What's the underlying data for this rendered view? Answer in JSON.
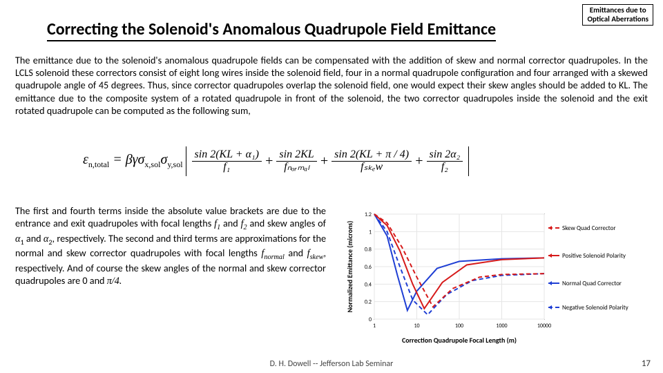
{
  "header": {
    "line1": "Emittances due to",
    "line2": "Optical Aberrations"
  },
  "title": "Correcting the Solenoid's Anomalous Quadrupole Field Emittance",
  "para1": "The emittance due to the solenoid's anomalous quadrupole fields can be compensated with the addition of skew and normal corrector quadrupoles.  In the LCLS solenoid these correctors consist of eight long wires inside the solenoid field, four in a normal quadrupole configuration and four arranged with a skewed quadrupole angle of 45 degrees.  Thus, since corrector quadrupoles overlap the solenoid field, one would expect their skew angles should be added to KL.  The emittance due to the composite system of a rotated quadrupole in front of the solenoid, the two corrector quadrupoles inside the solenoid and the exit rotated quadrupole can be computed as the following sum,",
  "formula": {
    "lhs": {
      "sym": "ε",
      "sub": "n,total",
      "eq": " = βγσ",
      "sub2": "x,sol",
      "sym2": "σ",
      "sub3": "y,sol"
    },
    "t1": {
      "num": "sin 2(KL + α₁)",
      "den": "f₁"
    },
    "t2": {
      "num": "sin 2KL",
      "den": "fₙₒᵣₘₐₗ"
    },
    "t3": {
      "num": "sin 2(KL + π / 4)",
      "den": "fₛₖₑw"
    },
    "t4": {
      "num": "sin 2α₂",
      "den": "f₂"
    }
  },
  "para2_parts": {
    "a": "The first and fourth terms inside the absolute value brackets are due to the entrance and exit quadrupoles with focal lengths ",
    "f1": "f",
    "f1s": "1",
    "and1": " and ",
    "f2": "f",
    "f2s": "2",
    "b": " and skew angles of ",
    "a1": "α",
    "a1s": "1",
    "and2": " and ",
    "a2": "α",
    "a2s": "2",
    "c": ", respectively.  The second and third terms are approximations for the normal and skew corrector quadrupoles with focal lengths ",
    "fn": "f",
    "fns": "normal",
    "and3": " and ",
    "fs": "f",
    "fss": "skew",
    "d": ", respectively.  And of course the skew angles of the normal and skew corrector quadrupoles are 0 and ",
    "pi": "π/4."
  },
  "chart": {
    "ylabel": "Normalized Emittance (microns)",
    "xlabel": "Correction Quadrupole Focal Length (m)",
    "xlim": [
      1,
      10000
    ],
    "ylim": [
      0,
      1.2
    ],
    "yticks": [
      "0",
      "0.2",
      "0.4",
      "0.6",
      "0.8",
      "1",
      "1.2"
    ],
    "xticks": [
      "1",
      "10",
      "100",
      "1000",
      "10000"
    ],
    "background": "#ffffff",
    "grid": "#e5e5e5",
    "axis": "#000000",
    "title_fontsize": 10,
    "legend": {
      "skew": "Skew Quad Corrector",
      "pos": "Positive Solenoid Polarity",
      "norm": "Normal Quad Corrector",
      "neg": "Negative Solenoid Polarity"
    },
    "colors": {
      "blue": "#1f3fd4",
      "red": "#d61a1a"
    },
    "curves": {
      "blue_solid": [
        [
          1,
          1.2
        ],
        [
          2,
          0.95
        ],
        [
          3.5,
          0.5
        ],
        [
          6,
          0.1
        ],
        [
          10,
          0.32
        ],
        [
          30,
          0.58
        ],
        [
          100,
          0.66
        ],
        [
          1000,
          0.69
        ],
        [
          10000,
          0.7
        ]
      ],
      "blue_dashed": [
        [
          1,
          1.2
        ],
        [
          2,
          1.0
        ],
        [
          4,
          0.6
        ],
        [
          8,
          0.22
        ],
        [
          18,
          0.05
        ],
        [
          50,
          0.28
        ],
        [
          200,
          0.44
        ],
        [
          1000,
          0.5
        ],
        [
          10000,
          0.52
        ]
      ],
      "red_solid": [
        [
          1,
          1.2
        ],
        [
          2,
          1.07
        ],
        [
          4,
          0.78
        ],
        [
          8,
          0.4
        ],
        [
          15,
          0.12
        ],
        [
          40,
          0.42
        ],
        [
          150,
          0.62
        ],
        [
          1000,
          0.68
        ],
        [
          10000,
          0.7
        ]
      ],
      "red_dashed": [
        [
          1,
          1.2
        ],
        [
          2,
          1.1
        ],
        [
          4.5,
          0.82
        ],
        [
          10,
          0.48
        ],
        [
          24,
          0.14
        ],
        [
          70,
          0.35
        ],
        [
          300,
          0.48
        ],
        [
          1000,
          0.51
        ],
        [
          10000,
          0.52
        ]
      ]
    }
  },
  "footer": "D. H. Dowell -- Jefferson Lab Seminar",
  "pagenum": "17"
}
